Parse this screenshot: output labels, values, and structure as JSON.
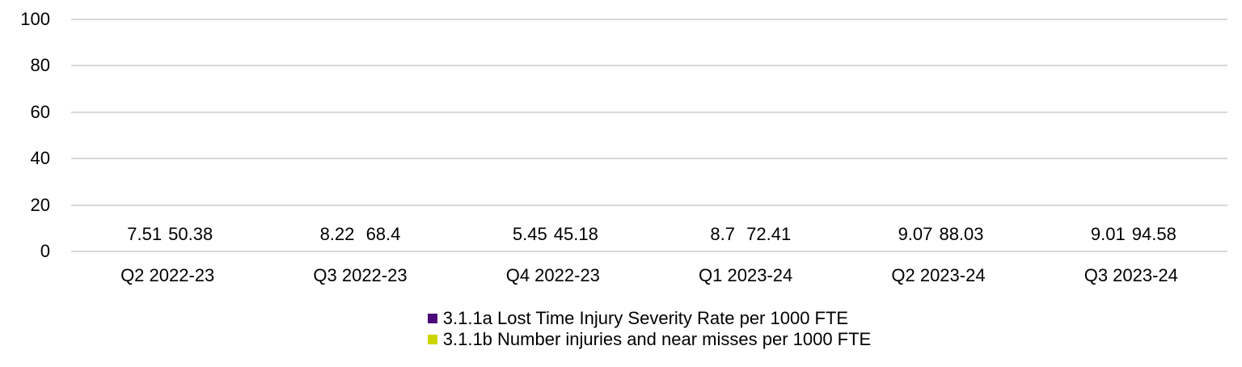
{
  "chart_data": {
    "type": "bar",
    "title": "",
    "xlabel": "",
    "ylabel": "",
    "categories": [
      "Q2 2022-23",
      "Q3 2022-23",
      "Q4 2022-23",
      "Q1 2023-24",
      "Q2 2023-24",
      "Q3 2023-24"
    ],
    "series": [
      {
        "name": "3.1.1a Lost Time Injury Severity Rate per 1000 FTE",
        "color": "#4B0A78",
        "values": [
          7.51,
          8.22,
          5.45,
          8.7,
          9.07,
          9.01
        ],
        "labels": [
          "7.51",
          "8.22",
          "5.45",
          "8.7",
          "9.07",
          "9.01"
        ]
      },
      {
        "name": "3.1.1b Number injuries and near misses per 1000 FTE",
        "color": "#CBD500",
        "values": [
          50.38,
          68.4,
          45.18,
          72.41,
          88.03,
          94.58
        ],
        "labels": [
          "50.38",
          "68.4",
          "45.18",
          "72.41",
          "88.03",
          "94.58"
        ]
      }
    ],
    "ylim": [
      0,
      100
    ],
    "yticks": [
      0,
      20,
      40,
      60,
      80,
      100
    ],
    "ytick_labels": [
      "0",
      "20",
      "40",
      "60",
      "80",
      "100"
    ],
    "grid": true,
    "legend_position": "bottom",
    "colors": {
      "gridline": "#D9D9D9",
      "text": "#000000",
      "background": "#FFFFFF"
    }
  }
}
